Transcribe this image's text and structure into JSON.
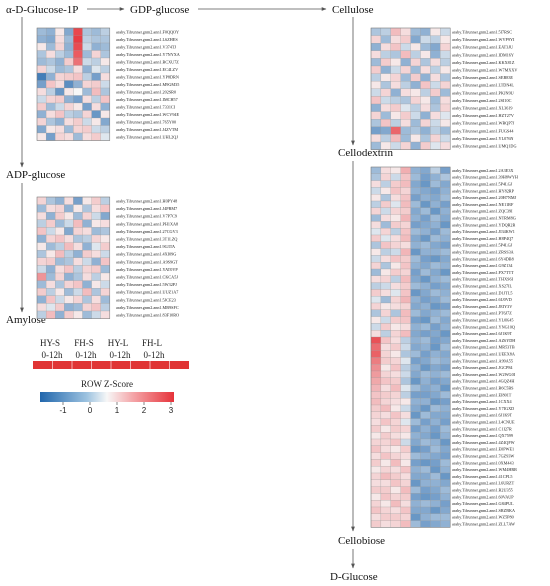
{
  "colors": {
    "low": "#2166ac",
    "mid": "#f7f7f7",
    "high": "#e6333a",
    "bar_red": "#e03434",
    "line": "#555555"
  },
  "pathway_nodes": {
    "n1": "α-D-Glucose-1P",
    "n2": "GDP-glucose",
    "n3": "Cellulose",
    "n4": "ADP-glucose",
    "n5": "Amylose",
    "n6": "Cellodextrin",
    "n7": "Cellobiose",
    "n8": "D-Glucose"
  },
  "condition_header": {
    "groups": [
      "HY-S",
      "FH-S",
      "HY-L",
      "FH-L"
    ],
    "times": [
      "0-12h",
      "0-12h",
      "0-12h",
      "0-12h"
    ]
  },
  "legend": {
    "title": "ROW Z-Score",
    "ticks": [
      "-1",
      "0",
      "1",
      "2",
      "3"
    ]
  },
  "heatmaps": [
    {
      "id": "hm-a1p-gdp",
      "cols": 8,
      "genes": [
        "araby.Tifrunner.gnm2.ann1.F0QQOY",
        "araby.Tifrunner.gnm2.ann1.L6ZHES",
        "araby.Tifrunner.gnm2.ann1.V374TJ",
        "araby.Tifrunner.gnm2.ann1.Y7NYXA",
        "araby.Tifrunner.gnm2.ann1.RCXU7Z",
        "araby.Tifrunner.gnm2.ann1.EC4LZV",
        "araby.Tifrunner.gnm2.ann1.YP8DRN",
        "araby.Tifrunner.gnm2.ann1.M9GM35",
        "araby.Tifrunner.gnm2.ann1.202SR0",
        "araby.Tifrunner.gnm2.ann1.IMCH57",
        "araby.Tifrunner.gnm2.ann1.7331CI",
        "araby.Tifrunner.gnm2.ann1.WCV94E",
        "araby.Tifrunner.gnm2.ann1.765Y00",
        "araby.Tifrunner.gnm2.ann1.J4ZVTM",
        "araby.Tifrunner.gnm2.ann1.UHL2QJ"
      ],
      "z": [
        [
          -0.5,
          -0.6,
          0.1,
          -0.7,
          2.6,
          -0.4,
          -0.5,
          -0.3
        ],
        [
          -0.6,
          -0.7,
          0.2,
          -0.5,
          2.8,
          -0.3,
          -0.4,
          -0.4
        ],
        [
          0.1,
          -0.5,
          0.3,
          -0.6,
          2.5,
          -0.2,
          -0.6,
          -0.5
        ],
        [
          -0.4,
          0.2,
          -0.3,
          -0.5,
          2.2,
          -0.5,
          0.3,
          -0.4
        ],
        [
          -0.5,
          -0.4,
          -0.6,
          0.4,
          1.8,
          -0.2,
          -0.3,
          0.1
        ],
        [
          0.3,
          -0.2,
          -0.5,
          -0.4,
          0.2,
          -0.6,
          -0.1,
          -0.3
        ],
        [
          -1.2,
          -0.6,
          0.3,
          0.4,
          0.5,
          -0.3,
          -0.8,
          0.2
        ],
        [
          -0.8,
          0.5,
          0.2,
          -1.0,
          -0.6,
          0.3,
          0.4,
          -0.2
        ],
        [
          0.2,
          -0.3,
          -0.9,
          0.1,
          0.0,
          -0.5,
          0.6,
          -0.4
        ],
        [
          -0.2,
          0.3,
          0.4,
          -0.6,
          -0.8,
          0.2,
          -0.3,
          0.5
        ],
        [
          0.4,
          -0.5,
          -0.2,
          0.3,
          0.1,
          -0.8,
          0.2,
          -0.6
        ],
        [
          -0.6,
          0.2,
          0.5,
          -0.3,
          -0.4,
          0.3,
          -0.9,
          0.1
        ],
        [
          0.3,
          -0.4,
          -0.6,
          0.2,
          0.4,
          -0.2,
          0.1,
          -0.7
        ],
        [
          -0.7,
          0.1,
          0.2,
          -0.5,
          0.3,
          0.4,
          -0.2,
          -0.3
        ],
        [
          0.1,
          -0.8,
          0.3,
          0.2,
          -0.5,
          0.2,
          0.4,
          -0.1
        ]
      ]
    },
    {
      "id": "hm-cellulose",
      "cols": 8,
      "genes": [
        "araby.Tifrunner.gnm2.ann1.5I7RSC",
        "araby.Tifrunner.gnm2.ann1.WVP9YI",
        "araby.Tifrunner.gnm2.ann1.EAT3JU",
        "araby.Tifrunner.gnm2.ann1.IDM16Y",
        "araby.Tifrunner.gnm2.ann1.KKX81Z",
        "araby.Tifrunner.gnm2.ann1.W7MXXV",
        "araby.Tifrunner.gnm2.ann1.SEB83E",
        "araby.Tifrunner.gnm2.ann1.LTDN4L",
        "araby.Tifrunner.gnm2.ann1.PKJN9U",
        "araby.Tifrunner.gnm2.ann1.2SI10C",
        "araby.Tifrunner.gnm2.ann1.XL3619",
        "araby.Tifrunner.gnm2.ann1.HZT27V",
        "araby.Tifrunner.gnm2.ann1.WRQP7J",
        "araby.Tifrunner.gnm2.ann1.FUGS44",
        "araby.Tifrunner.gnm2.ann1.YL076N",
        "araby.Tifrunner.gnm2.ann1.UMQ1DG"
      ],
      "z": [
        [
          -0.4,
          -0.3,
          0.6,
          0.2,
          -0.5,
          -0.6,
          0.1,
          -0.2
        ],
        [
          0.3,
          -0.5,
          0.2,
          0.4,
          -0.7,
          -0.2,
          -0.3,
          0.1
        ],
        [
          -0.6,
          0.2,
          0.5,
          -0.2,
          0.1,
          -0.5,
          -0.7,
          0.3
        ],
        [
          0.2,
          -0.3,
          -0.4,
          0.6,
          -0.3,
          0.1,
          -0.6,
          -0.2
        ],
        [
          -0.5,
          0.4,
          0.1,
          -0.6,
          0.3,
          -0.4,
          0.2,
          -0.3
        ],
        [
          0.4,
          -0.6,
          -0.2,
          0.3,
          -0.5,
          0.2,
          -0.3,
          0.1
        ],
        [
          -0.3,
          0.1,
          0.3,
          -0.5,
          0.4,
          -0.6,
          0.2,
          -0.4
        ],
        [
          0.1,
          -0.4,
          0.2,
          -0.3,
          -0.6,
          0.5,
          -0.2,
          0.3
        ],
        [
          -0.2,
          0.3,
          -0.6,
          0.2,
          0.1,
          -0.3,
          0.4,
          -0.5
        ],
        [
          0.5,
          -0.2,
          -0.3,
          -0.4,
          0.3,
          0.1,
          -0.5,
          0.2
        ],
        [
          -0.6,
          0.2,
          0.4,
          -0.1,
          -0.3,
          0.2,
          -0.4,
          0.3
        ],
        [
          0.3,
          -0.5,
          0.1,
          0.4,
          -0.2,
          -0.6,
          0.2,
          -0.1
        ],
        [
          -0.4,
          0.5,
          -0.3,
          0.2,
          -0.5,
          0.3,
          -0.2,
          0.1
        ],
        [
          -0.8,
          -0.7,
          2.0,
          -0.5,
          -0.4,
          -0.6,
          -0.3,
          -0.5
        ],
        [
          0.2,
          -0.3,
          0.6,
          -0.5,
          0.1,
          -0.4,
          0.3,
          -0.2
        ],
        [
          -0.5,
          0.1,
          -0.2,
          0.3,
          -0.6,
          0.4,
          -0.1,
          0.2
        ]
      ]
    },
    {
      "id": "hm-adp",
      "cols": 8,
      "genes": [
        "araby.Tifrunner.gnm2.ann1.H0PY48",
        "araby.Tifrunner.gnm2.ann1.J4PRM7",
        "araby.Tifrunner.gnm2.ann1.V7P7C9",
        "araby.Tifrunner.gnm2.ann1.PH1XA8",
        "araby.Tifrunner.gnm2.ann1.27CGV3",
        "araby.Tifrunner.gnm2.ann1.3T1LZQ",
        "araby.Tifrunner.gnm2.ann1.9G3TA",
        "araby.Tifrunner.gnm2.ann1.4XI09G",
        "araby.Tifrunner.gnm2.ann1.A9S9GT",
        "araby.Tifrunner.gnm2.ann1.YAT0VP",
        "araby.Tifrunner.gnm2.ann1.CKCA5J",
        "araby.Tifrunner.gnm2.ann1.5W32PJ",
        "araby.Tifrunner.gnm2.ann1.UUZ1A7",
        "araby.Tifrunner.gnm2.ann1.5JCE23",
        "araby.Tifrunner.gnm2.ann1.MB9SFC",
        "araby.Tifrunner.gnm2.ann1.83F10RO"
      ],
      "z": [
        [
          0.3,
          -0.4,
          -0.6,
          0.2,
          -0.8,
          0.1,
          0.4,
          -0.3
        ],
        [
          -0.5,
          0.2,
          0.3,
          -0.6,
          0.1,
          -0.4,
          0.2,
          0.5
        ],
        [
          0.2,
          -0.6,
          0.4,
          0.1,
          -0.5,
          0.3,
          -0.2,
          -0.7
        ],
        [
          -0.3,
          0.4,
          -0.5,
          -0.2,
          0.6,
          -0.6,
          0.1,
          0.2
        ],
        [
          0.5,
          -0.2,
          0.1,
          -0.7,
          0.3,
          0.2,
          -0.5,
          -0.4
        ],
        [
          -0.6,
          0.3,
          0.5,
          0.2,
          -0.4,
          -0.3,
          0.3,
          0.1
        ],
        [
          0.1,
          -0.5,
          -0.3,
          0.6,
          0.2,
          -0.6,
          -0.1,
          0.4
        ],
        [
          -0.4,
          0.1,
          0.6,
          -0.3,
          -0.6,
          0.4,
          0.2,
          -0.2
        ],
        [
          0.3,
          0.4,
          -0.5,
          -0.4,
          0.2,
          -0.2,
          -0.6,
          0.5
        ],
        [
          -0.2,
          -0.6,
          0.2,
          0.5,
          -0.3,
          0.3,
          0.4,
          -0.5
        ],
        [
          1.2,
          -0.5,
          0.3,
          -0.6,
          -0.4,
          0.2,
          -0.3,
          0.1
        ],
        [
          -0.5,
          0.2,
          -0.4,
          0.3,
          0.5,
          -0.6,
          0.1,
          -0.2
        ],
        [
          0.4,
          -0.3,
          0.1,
          -0.5,
          -0.2,
          0.6,
          -0.4,
          0.3
        ],
        [
          -0.6,
          0.5,
          -0.2,
          0.1,
          0.3,
          -0.4,
          0.2,
          -0.5
        ],
        [
          0.2,
          -0.1,
          0.4,
          -0.6,
          -0.5,
          0.3,
          0.5,
          -0.3
        ],
        [
          -0.3,
          0.6,
          -0.6,
          0.4,
          0.1,
          -0.5,
          -0.2,
          0.2
        ]
      ]
    },
    {
      "id": "hm-cellodextrin",
      "cols": 8,
      "genes": [
        "araby.Tifrunner.gnm2.ann1.2A3E3X",
        "araby.Tifrunner.gnm2.ann1.39H8WYH",
        "araby.Tifrunner.gnm2.ann1.5P4LGJ",
        "araby.Tifrunner.gnm2.ann1.HY82RP",
        "araby.Tifrunner.gnm2.ann1.20H7NMJ",
        "araby.Tifrunner.gnm2.ann1.NE11RF",
        "araby.Tifrunner.gnm2.ann1.ZQC39I",
        "araby.Tifrunner.gnm2.ann1.NTRM8G",
        "araby.Tifrunner.gnm2.ann1.YDQR2R",
        "araby.Tifrunner.gnm2.ann1.JI34KW1",
        "araby.Tifrunner.gnm2.ann1.H8P4Q7",
        "araby.Tifrunner.gnm2.ann1.5P4LGJ",
        "araby.Tifrunner.gnm2.ann1.ZRSS3A",
        "araby.Tifrunner.gnm2.ann1.6Y4DB8",
        "araby.Tifrunner.gnm2.ann1.G9Z134",
        "araby.Tifrunner.gnm2.ann1.PX7TTT",
        "araby.Tifrunner.gnm2.ann1.THXS6I",
        "araby.Tifrunner.gnm2.ann1.XS27IL",
        "araby.Tifrunner.gnm2.ann1.D1JTL5",
        "araby.Tifrunner.gnm2.ann1.6U0VD",
        "araby.Tifrunner.gnm2.ann1.JEIY3V",
        "araby.Tifrunner.gnm2.ann1.PT6J7Z",
        "araby.Tifrunner.gnm2.ann1.YL0K45",
        "araby.Tifrunner.gnm2.ann1.YNG10Q",
        "araby.Tifrunner.gnm2.ann1.6J1K9T",
        "araby.Tifrunner.gnm2.ann1.AZ6YDH",
        "araby.Tifrunner.gnm2.ann1.MR53TB",
        "araby.Tifrunner.gnm2.ann1.UEEX8A",
        "araby.Tifrunner.gnm2.ann1.A99A55",
        "araby.Tifrunner.gnm2.ann1.JGCP84",
        "araby.Tifrunner.gnm2.ann1.W2WG0I",
        "araby.Tifrunner.gnm2.ann1.4GQZ4H",
        "araby.Tifrunner.gnm2.ann1.R6C5BS",
        "araby.Tifrunner.gnm2.ann1.EI801T",
        "araby.Tifrunner.gnm2.ann1.1CXX4",
        "araby.Tifrunner.gnm2.ann1.Y7IGXD",
        "araby.Tifrunner.gnm2.ann1.6J1K9T",
        "araby.Tifrunner.gnm2.ann1.L4CNUE",
        "araby.Tifrunner.gnm2.ann1.C1I27R",
        "araby.Tifrunner.gnm2.ann1.QX7599",
        "araby.Tifrunner.gnm2.ann1.4Z4QFW",
        "araby.Tifrunner.gnm2.ann1.E0PWE1",
        "araby.Tifrunner.gnm2.ann1.7GZ93W",
        "araby.Tifrunner.gnm2.ann1.0XM443",
        "araby.Tifrunner.gnm2.ann1.WM4HRR",
        "araby.Tifrunner.gnm2.ann1.41CPL5",
        "araby.Tifrunner.gnm2.ann1.L6URZT",
        "araby.Tifrunner.gnm2.ann1.R2U355",
        "araby.Tifrunner.gnm2.ann1.60VAUP",
        "araby.Tifrunner.gnm2.ann1.G84PUL",
        "araby.Tifrunner.gnm2.ann1.SRZBKA",
        "araby.Tifrunner.gnm2.ann1.WZ5P80",
        "araby.Tifrunner.gnm2.ann1.ZLL7AW"
      ],
      "z": [
        [
          -0.5,
          0.2,
          0.1,
          0.8,
          -0.6,
          -0.7,
          -0.3,
          -0.8
        ],
        [
          -0.4,
          0.3,
          -0.2,
          0.5,
          -0.5,
          -0.8,
          -0.6,
          -0.4
        ],
        [
          0.2,
          -0.3,
          0.4,
          0.6,
          -0.7,
          -0.9,
          -0.5,
          -0.7
        ],
        [
          -0.2,
          0.1,
          0.5,
          0.3,
          -0.6,
          -0.7,
          -0.8,
          -0.6
        ],
        [
          0.1,
          -0.4,
          0.2,
          0.5,
          -0.8,
          -0.6,
          -0.7,
          -0.5
        ],
        [
          -0.3,
          0.4,
          -0.1,
          0.6,
          -0.5,
          -0.9,
          -0.6,
          -0.8
        ],
        [
          0.3,
          -0.2,
          0.3,
          0.4,
          -0.7,
          -0.5,
          -0.9,
          -0.6
        ],
        [
          -0.5,
          0.2,
          0.1,
          0.7,
          -0.6,
          -0.8,
          -0.5,
          -0.7
        ],
        [
          0.2,
          -0.5,
          0.4,
          0.3,
          -0.8,
          -0.7,
          -0.6,
          -0.9
        ],
        [
          -0.1,
          0.3,
          -0.3,
          0.5,
          -0.5,
          -0.6,
          -0.8,
          -0.5
        ],
        [
          0.4,
          -0.1,
          0.2,
          0.6,
          -0.7,
          -0.9,
          -0.5,
          -0.6
        ],
        [
          -0.4,
          0.5,
          0.3,
          0.2,
          -0.6,
          -0.5,
          -0.7,
          -0.8
        ],
        [
          0.1,
          -0.3,
          -0.2,
          0.7,
          -0.9,
          -0.6,
          -0.6,
          -0.5
        ],
        [
          -0.2,
          0.2,
          0.5,
          0.4,
          -0.5,
          -0.8,
          -0.9,
          -0.7
        ],
        [
          0.3,
          -0.4,
          0.1,
          0.5,
          -0.6,
          -0.7,
          -0.5,
          -0.6
        ],
        [
          -0.5,
          0.1,
          0.4,
          0.3,
          -0.8,
          -0.5,
          -0.7,
          -0.9
        ],
        [
          0.2,
          0.3,
          -0.3,
          0.6,
          -0.7,
          -0.9,
          -0.6,
          -0.5
        ],
        [
          -0.3,
          -0.2,
          0.2,
          0.4,
          -0.5,
          -0.6,
          -0.8,
          -0.7
        ],
        [
          0.4,
          0.2,
          -0.1,
          0.5,
          -0.9,
          -0.7,
          -0.5,
          -0.6
        ],
        [
          -0.1,
          -0.5,
          0.3,
          0.7,
          -0.6,
          -0.8,
          -0.7,
          -0.5
        ],
        [
          0.3,
          0.1,
          0.2,
          0.3,
          -0.7,
          -0.6,
          -0.9,
          -0.8
        ],
        [
          -0.4,
          0.3,
          -0.4,
          0.6,
          -0.5,
          -0.7,
          -0.6,
          -0.5
        ],
        [
          0.1,
          -0.2,
          0.4,
          0.5,
          -0.8,
          -0.9,
          -0.5,
          -0.7
        ],
        [
          -0.2,
          0.4,
          0.1,
          0.2,
          -0.6,
          -0.5,
          -0.8,
          -0.6
        ],
        [
          0.2,
          -0.3,
          0.3,
          0.6,
          -0.7,
          -0.8,
          -0.7,
          -0.9
        ],
        [
          2.4,
          0.5,
          0.2,
          -0.3,
          -0.6,
          -0.5,
          -0.8,
          -0.7
        ],
        [
          1.9,
          0.2,
          0.4,
          -0.2,
          -0.7,
          -0.6,
          -0.9,
          -0.5
        ],
        [
          2.1,
          0.3,
          0.1,
          -0.4,
          -0.5,
          -0.8,
          -0.6,
          -0.7
        ],
        [
          1.6,
          0.4,
          0.3,
          -0.1,
          -0.8,
          -0.7,
          -0.5,
          -0.6
        ],
        [
          1.3,
          0.1,
          0.5,
          -0.3,
          -0.6,
          -0.9,
          -0.7,
          -0.8
        ],
        [
          1.1,
          0.3,
          0.2,
          -0.2,
          -0.7,
          -0.5,
          -0.6,
          -0.5
        ],
        [
          0.9,
          0.5,
          0.4,
          -0.4,
          -0.9,
          -0.6,
          -0.8,
          -0.7
        ],
        [
          0.7,
          0.2,
          0.6,
          -0.1,
          -0.5,
          -0.7,
          -0.6,
          -0.9
        ],
        [
          0.5,
          0.4,
          0.3,
          -0.3,
          -0.8,
          -0.8,
          -0.7,
          -0.5
        ],
        [
          0.6,
          0.3,
          0.2,
          0.1,
          -0.6,
          -0.6,
          -0.9,
          -0.8
        ],
        [
          0.4,
          0.6,
          0.1,
          -0.2,
          -0.7,
          -0.9,
          -0.5,
          -0.6
        ],
        [
          0.3,
          0.2,
          0.5,
          0.2,
          -0.9,
          -0.5,
          -0.7,
          -0.7
        ],
        [
          0.2,
          0.5,
          0.3,
          -0.1,
          -0.5,
          -0.8,
          -0.6,
          -0.8
        ],
        [
          0.4,
          0.1,
          0.4,
          0.3,
          -0.8,
          -0.6,
          -0.8,
          -0.5
        ],
        [
          0.1,
          0.4,
          0.2,
          0.1,
          -0.6,
          -0.7,
          -0.9,
          -0.6
        ],
        [
          0.3,
          0.3,
          0.5,
          -0.2,
          -0.7,
          -0.5,
          -0.6,
          -0.9
        ],
        [
          0.5,
          0.2,
          0.1,
          0.4,
          -0.9,
          -0.8,
          -0.5,
          -0.7
        ],
        [
          0.2,
          0.5,
          0.3,
          0.2,
          -0.5,
          -0.6,
          -0.7,
          -0.8
        ],
        [
          0.4,
          0.1,
          0.6,
          0.1,
          -0.8,
          -0.9,
          -0.8,
          -0.5
        ],
        [
          0.1,
          0.3,
          0.2,
          0.5,
          -0.6,
          -0.5,
          -0.9,
          -0.6
        ],
        [
          0.3,
          0.6,
          0.4,
          0.2,
          -0.7,
          -0.7,
          -0.5,
          -0.9
        ],
        [
          0.2,
          0.2,
          0.5,
          0.3,
          -0.9,
          -0.6,
          -0.6,
          -0.7
        ],
        [
          0.4,
          0.4,
          0.1,
          0.6,
          -0.5,
          -0.8,
          -0.7,
          -0.5
        ],
        [
          0.1,
          0.5,
          0.3,
          0.4,
          -0.8,
          -0.9,
          -0.8,
          -0.6
        ],
        [
          0.3,
          0.1,
          0.6,
          0.2,
          -0.6,
          -0.5,
          -0.6,
          -0.8
        ],
        [
          0.5,
          0.3,
          0.2,
          0.5,
          -0.7,
          -0.7,
          -0.9,
          -0.7
        ],
        [
          0.2,
          0.4,
          0.4,
          0.3,
          -0.9,
          -0.6,
          -0.5,
          -0.5
        ],
        [
          0.4,
          0.2,
          0.3,
          0.6,
          -0.5,
          -0.8,
          -0.7,
          -0.6
        ]
      ]
    }
  ]
}
